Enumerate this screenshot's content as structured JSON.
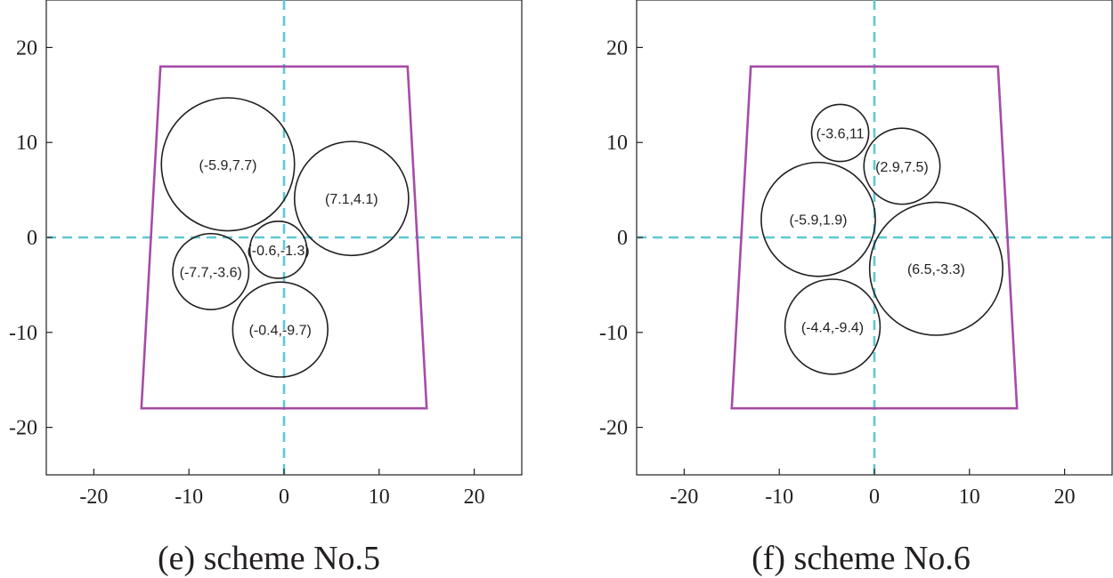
{
  "chart_data": [
    {
      "type": "scatter",
      "caption": "(e) scheme No.5",
      "xlim": [
        -25,
        25
      ],
      "ylim": [
        -25,
        25
      ],
      "xticks": [
        -20,
        -10,
        0,
        10,
        20
      ],
      "yticks": [
        -20,
        -10,
        0,
        10,
        20
      ],
      "xtick_labels": [
        "-20",
        "-10",
        "0",
        "10",
        "20"
      ],
      "ytick_labels": [
        "-20",
        "-10",
        "0",
        "10",
        "20"
      ],
      "grid": false,
      "reference_lines": {
        "x": 0,
        "y": 0,
        "color": "#5ec8d3",
        "style": "dashed"
      },
      "boundary": {
        "color": "#a64ca6",
        "vertices": [
          [
            -13,
            18
          ],
          [
            13,
            18
          ],
          [
            15,
            -18
          ],
          [
            -15,
            -18
          ]
        ]
      },
      "circles": [
        {
          "x": -5.9,
          "y": 7.7,
          "r": 7.0,
          "label": "(-5.9,7.7)"
        },
        {
          "x": 7.1,
          "y": 4.1,
          "r": 6.0,
          "label": "(7.1,4.1)"
        },
        {
          "x": -0.6,
          "y": -1.3,
          "r": 3.0,
          "label": "(-0.6,-1.3)"
        },
        {
          "x": -7.7,
          "y": -3.6,
          "r": 4.0,
          "label": "(-7.7,-3.6)"
        },
        {
          "x": -0.4,
          "y": -9.7,
          "r": 5.0,
          "label": "(-0.4,-9.7)"
        }
      ]
    },
    {
      "type": "scatter",
      "caption": "(f) scheme No.6",
      "xlim": [
        -25,
        25
      ],
      "ylim": [
        -25,
        25
      ],
      "xticks": [
        -20,
        -10,
        0,
        10,
        20
      ],
      "yticks": [
        -20,
        -10,
        0,
        10,
        20
      ],
      "xtick_labels": [
        "-20",
        "-10",
        "0",
        "10",
        "20"
      ],
      "ytick_labels": [
        "-20",
        "-10",
        "0",
        "10",
        "20"
      ],
      "grid": false,
      "reference_lines": {
        "x": 0,
        "y": 0,
        "color": "#5ec8d3",
        "style": "dashed"
      },
      "boundary": {
        "color": "#a64ca6",
        "vertices": [
          [
            -13,
            18
          ],
          [
            13,
            18
          ],
          [
            15,
            -18
          ],
          [
            -15,
            -18
          ]
        ]
      },
      "circles": [
        {
          "x": -3.6,
          "y": 11,
          "r": 3.0,
          "label": "(-3.6,11"
        },
        {
          "x": 2.9,
          "y": 7.5,
          "r": 4.0,
          "label": "(2.9,7.5)"
        },
        {
          "x": -5.9,
          "y": 1.9,
          "r": 6.0,
          "label": "(-5.9,1.9)"
        },
        {
          "x": 6.5,
          "y": -3.3,
          "r": 7.0,
          "label": "(6.5,-3.3)"
        },
        {
          "x": -4.4,
          "y": -9.4,
          "r": 5.0,
          "label": "(-4.4,-9.4)"
        }
      ]
    }
  ]
}
